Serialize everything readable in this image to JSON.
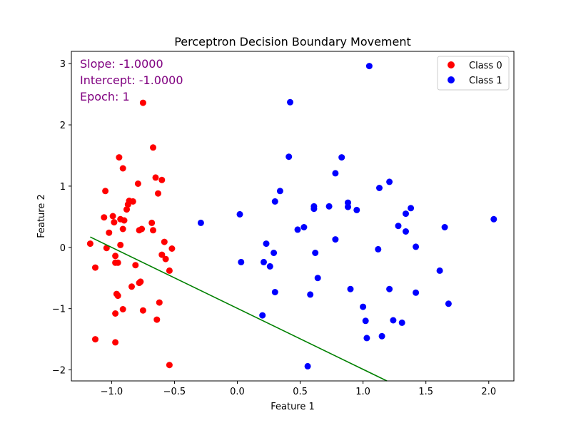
{
  "chart_data": {
    "type": "scatter",
    "title": "Perceptron Decision Boundary Movement",
    "xlabel": "Feature 1",
    "ylabel": "Feature 2",
    "xlim": [
      -1.32,
      2.2
    ],
    "ylim": [
      -2.18,
      3.2
    ],
    "xticks": [
      -1.0,
      -0.5,
      0.0,
      0.5,
      1.0,
      1.5,
      2.0
    ],
    "xtick_labels": [
      "−1.0",
      "−0.5",
      "0.0",
      "0.5",
      "1.0",
      "1.5",
      "2.0"
    ],
    "yticks": [
      -2,
      -1,
      0,
      1,
      2,
      3
    ],
    "ytick_labels": [
      "−2",
      "−1",
      "0",
      "1",
      "2",
      "3"
    ],
    "grid": false,
    "legend": {
      "placement": "top-right",
      "entries": [
        {
          "name": "Class 0",
          "color": "#ff0000"
        },
        {
          "name": "Class 1",
          "color": "#0000ff"
        }
      ]
    },
    "annotations": {
      "slope": "Slope: -1.0000",
      "intercept": "Intercept: -1.0000",
      "epoch": "Epoch: 1",
      "color": "#800080"
    },
    "boundary_line": {
      "slope": -1.0,
      "intercept": -1.0,
      "x_start": -1.17,
      "x_end": 1.19,
      "y_start": 0.17,
      "y_end": -2.18,
      "color": "#008000"
    },
    "series": [
      {
        "name": "Class 0",
        "color": "#ff0000",
        "points": [
          [
            -0.75,
            2.36
          ],
          [
            -0.67,
            1.63
          ],
          [
            -0.94,
            1.47
          ],
          [
            -0.91,
            1.29
          ],
          [
            -0.65,
            1.14
          ],
          [
            -0.6,
            1.1
          ],
          [
            -0.79,
            1.04
          ],
          [
            -1.05,
            0.92
          ],
          [
            -0.63,
            0.88
          ],
          [
            -0.86,
            0.76
          ],
          [
            -0.83,
            0.75
          ],
          [
            -0.87,
            0.7
          ],
          [
            -0.88,
            0.62
          ],
          [
            -0.99,
            0.51
          ],
          [
            -1.06,
            0.49
          ],
          [
            -0.93,
            0.46
          ],
          [
            -0.9,
            0.44
          ],
          [
            -0.98,
            0.41
          ],
          [
            -0.68,
            0.4
          ],
          [
            -0.91,
            0.3
          ],
          [
            -0.76,
            0.3
          ],
          [
            -0.78,
            0.28
          ],
          [
            -0.67,
            0.28
          ],
          [
            -1.02,
            0.24
          ],
          [
            -0.58,
            0.09
          ],
          [
            -1.17,
            0.06
          ],
          [
            -0.93,
            0.04
          ],
          [
            -1.04,
            -0.01
          ],
          [
            -0.52,
            -0.02
          ],
          [
            -0.6,
            -0.12
          ],
          [
            -0.97,
            -0.14
          ],
          [
            -0.57,
            -0.19
          ],
          [
            -0.97,
            -0.25
          ],
          [
            -0.95,
            -0.25
          ],
          [
            -0.81,
            -0.29
          ],
          [
            -1.13,
            -0.33
          ],
          [
            -0.54,
            -0.38
          ],
          [
            -0.77,
            -0.56
          ],
          [
            -0.78,
            -0.58
          ],
          [
            -0.84,
            -0.64
          ],
          [
            -0.96,
            -0.76
          ],
          [
            -0.95,
            -0.79
          ],
          [
            -0.62,
            -0.9
          ],
          [
            -0.91,
            -1.01
          ],
          [
            -0.75,
            -1.03
          ],
          [
            -0.97,
            -1.08
          ],
          [
            -0.64,
            -1.18
          ],
          [
            -1.13,
            -1.5
          ],
          [
            -0.97,
            -1.55
          ],
          [
            -0.54,
            -1.92
          ]
        ]
      },
      {
        "name": "Class 1",
        "color": "#0000ff",
        "points": [
          [
            1.05,
            2.96
          ],
          [
            0.42,
            2.37
          ],
          [
            0.41,
            1.48
          ],
          [
            0.83,
            1.47
          ],
          [
            0.78,
            1.21
          ],
          [
            1.21,
            1.07
          ],
          [
            1.13,
            0.97
          ],
          [
            0.34,
            0.92
          ],
          [
            0.3,
            0.75
          ],
          [
            0.88,
            0.73
          ],
          [
            0.61,
            0.67
          ],
          [
            0.73,
            0.67
          ],
          [
            0.88,
            0.66
          ],
          [
            1.38,
            0.64
          ],
          [
            0.61,
            0.63
          ],
          [
            0.95,
            0.61
          ],
          [
            1.34,
            0.55
          ],
          [
            0.02,
            0.54
          ],
          [
            2.04,
            0.46
          ],
          [
            -0.29,
            0.4
          ],
          [
            1.28,
            0.35
          ],
          [
            0.53,
            0.33
          ],
          [
            1.65,
            0.33
          ],
          [
            0.48,
            0.29
          ],
          [
            1.34,
            0.26
          ],
          [
            0.78,
            0.13
          ],
          [
            0.23,
            0.06
          ],
          [
            1.42,
            0.01
          ],
          [
            1.12,
            -0.03
          ],
          [
            0.29,
            -0.09
          ],
          [
            0.62,
            -0.09
          ],
          [
            0.03,
            -0.24
          ],
          [
            0.21,
            -0.24
          ],
          [
            0.26,
            -0.31
          ],
          [
            1.61,
            -0.38
          ],
          [
            0.64,
            -0.5
          ],
          [
            1.21,
            -0.68
          ],
          [
            0.9,
            -0.68
          ],
          [
            1.42,
            -0.74
          ],
          [
            0.3,
            -0.73
          ],
          [
            0.58,
            -0.77
          ],
          [
            1.68,
            -0.92
          ],
          [
            1.0,
            -0.97
          ],
          [
            0.2,
            -1.11
          ],
          [
            1.24,
            -1.19
          ],
          [
            1.31,
            -1.23
          ],
          [
            1.02,
            -1.2
          ],
          [
            1.15,
            -1.45
          ],
          [
            1.03,
            -1.48
          ],
          [
            0.56,
            -1.94
          ]
        ]
      }
    ]
  }
}
